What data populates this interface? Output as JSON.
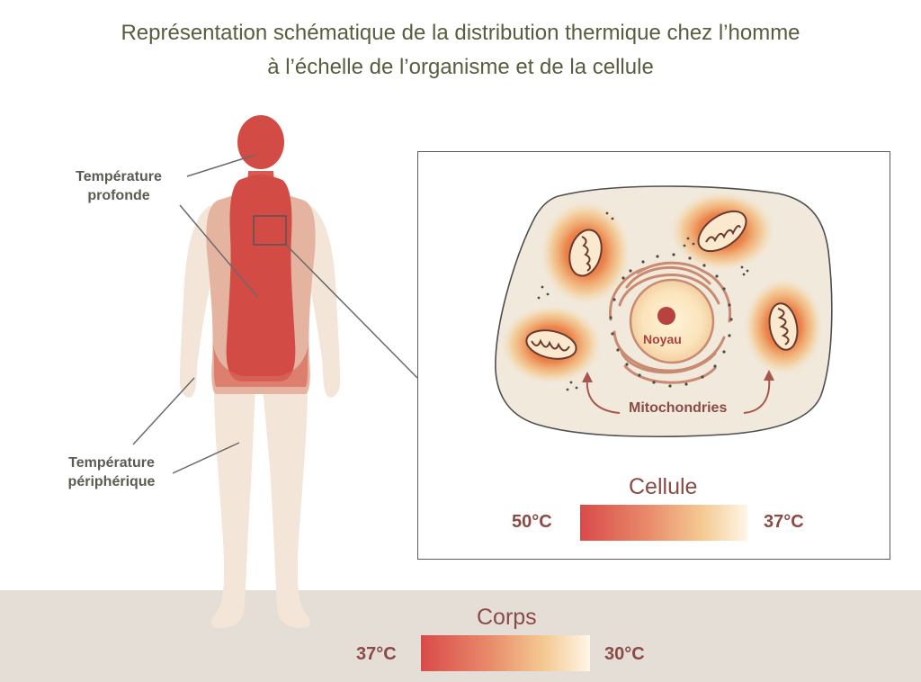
{
  "title": {
    "line1": "Représentation schématique de la distribution thermique chez l’homme",
    "line2": "à l’échelle de l’organisme et de la cellule"
  },
  "labels": {
    "deep_temp_line1": "Température",
    "deep_temp_line2": "profonde",
    "peripheral_temp_line1": "Température",
    "peripheral_temp_line2": "périphérique"
  },
  "cell": {
    "nucleus_label": "Noyau",
    "mitochondria_label": "Mitochondries"
  },
  "cell_scale": {
    "title": "Cellule",
    "left_value": "50°C",
    "right_value": "37°C"
  },
  "body_scale": {
    "title": "Corps",
    "left_value": "37°C",
    "right_value": "30°C"
  },
  "colors": {
    "hot": "#d94a4a",
    "warm": "#f4c890",
    "cool": "#fff6e6",
    "skin": "#f3e6d8",
    "cytoplasm": "#f1e9dc"
  }
}
